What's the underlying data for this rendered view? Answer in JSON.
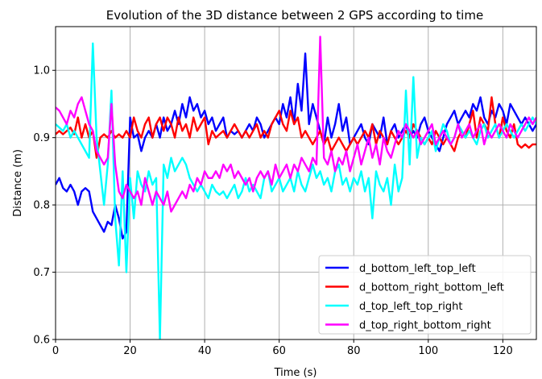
{
  "chart_data": {
    "type": "line",
    "title": "Evolution of the 3D distance between 2 GPS according to time",
    "xlabel": "Time (s)",
    "ylabel": "Distance (m)",
    "xlim": [
      0,
      129
    ],
    "ylim": [
      0.6,
      1.065
    ],
    "xticks": [
      0,
      20,
      40,
      60,
      80,
      100,
      120
    ],
    "yticks": [
      0.6,
      0.7,
      0.8,
      0.9,
      1.0
    ],
    "ytick_labels": [
      "0.6",
      "0.7",
      "0.8",
      "0.9",
      "1.0"
    ],
    "grid": true,
    "legend_position": "lower-right",
    "series": [
      {
        "name": "d_bottom_left_top_left",
        "color": "#0000ff",
        "x": [
          0,
          1,
          2,
          3,
          4,
          5,
          6,
          7,
          8,
          9,
          10,
          11,
          12,
          13,
          14,
          15,
          16,
          17,
          18,
          19,
          20,
          21,
          22,
          23,
          24,
          25,
          26,
          27,
          28,
          29,
          30,
          31,
          32,
          33,
          34,
          35,
          36,
          37,
          38,
          39,
          40,
          41,
          42,
          43,
          44,
          45,
          46,
          47,
          48,
          49,
          50,
          51,
          52,
          53,
          54,
          55,
          56,
          57,
          58,
          59,
          60,
          61,
          62,
          63,
          64,
          65,
          66,
          67,
          68,
          69,
          70,
          71,
          72,
          73,
          74,
          75,
          76,
          77,
          78,
          79,
          80,
          81,
          82,
          83,
          84,
          85,
          86,
          87,
          88,
          89,
          90,
          91,
          92,
          93,
          94,
          95,
          96,
          97,
          98,
          99,
          100,
          101,
          102,
          103,
          104,
          105,
          106,
          107,
          108,
          109,
          110,
          111,
          112,
          113,
          114,
          115,
          116,
          117,
          118,
          119,
          120,
          121,
          122,
          123,
          124,
          125,
          126,
          127,
          128,
          129
        ],
        "y": [
          0.83,
          0.84,
          0.825,
          0.82,
          0.83,
          0.82,
          0.8,
          0.82,
          0.825,
          0.82,
          0.79,
          0.78,
          0.77,
          0.76,
          0.775,
          0.77,
          0.8,
          0.78,
          0.75,
          0.76,
          0.93,
          0.9,
          0.905,
          0.88,
          0.9,
          0.91,
          0.9,
          0.92,
          0.9,
          0.93,
          0.91,
          0.92,
          0.94,
          0.92,
          0.95,
          0.93,
          0.96,
          0.94,
          0.95,
          0.93,
          0.94,
          0.92,
          0.93,
          0.91,
          0.92,
          0.93,
          0.9,
          0.91,
          0.905,
          0.91,
          0.9,
          0.91,
          0.92,
          0.91,
          0.93,
          0.92,
          0.9,
          0.91,
          0.92,
          0.93,
          0.92,
          0.95,
          0.93,
          0.96,
          0.92,
          0.98,
          0.94,
          1.025,
          0.92,
          0.95,
          0.93,
          0.91,
          0.89,
          0.93,
          0.9,
          0.92,
          0.95,
          0.91,
          0.93,
          0.89,
          0.9,
          0.91,
          0.92,
          0.9,
          0.89,
          0.92,
          0.91,
          0.9,
          0.93,
          0.89,
          0.91,
          0.92,
          0.9,
          0.91,
          0.92,
          0.9,
          0.91,
          0.9,
          0.92,
          0.93,
          0.91,
          0.9,
          0.89,
          0.88,
          0.9,
          0.92,
          0.93,
          0.94,
          0.92,
          0.93,
          0.94,
          0.93,
          0.95,
          0.94,
          0.96,
          0.93,
          0.92,
          0.94,
          0.93,
          0.95,
          0.94,
          0.92,
          0.95,
          0.94,
          0.93,
          0.92,
          0.93,
          0.92,
          0.91,
          0.92
        ]
      },
      {
        "name": "d_bottom_right_bottom_left",
        "color": "#ff0000",
        "x": [
          0,
          1,
          2,
          3,
          4,
          5,
          6,
          7,
          8,
          9,
          10,
          11,
          12,
          13,
          14,
          15,
          16,
          17,
          18,
          19,
          20,
          21,
          22,
          23,
          24,
          25,
          26,
          27,
          28,
          29,
          30,
          31,
          32,
          33,
          34,
          35,
          36,
          37,
          38,
          39,
          40,
          41,
          42,
          43,
          44,
          45,
          46,
          47,
          48,
          49,
          50,
          51,
          52,
          53,
          54,
          55,
          56,
          57,
          58,
          59,
          60,
          61,
          62,
          63,
          64,
          65,
          66,
          67,
          68,
          69,
          70,
          71,
          72,
          73,
          74,
          75,
          76,
          77,
          78,
          79,
          80,
          81,
          82,
          83,
          84,
          85,
          86,
          87,
          88,
          89,
          90,
          91,
          92,
          93,
          94,
          95,
          96,
          97,
          98,
          99,
          100,
          101,
          102,
          103,
          104,
          105,
          106,
          107,
          108,
          109,
          110,
          111,
          112,
          113,
          114,
          115,
          116,
          117,
          118,
          119,
          120,
          121,
          122,
          123,
          124,
          125,
          126,
          127,
          128,
          129
        ],
        "y": [
          0.905,
          0.91,
          0.905,
          0.91,
          0.915,
          0.905,
          0.93,
          0.9,
          0.92,
          0.9,
          0.91,
          0.87,
          0.9,
          0.905,
          0.9,
          0.91,
          0.9,
          0.905,
          0.9,
          0.91,
          0.9,
          0.93,
          0.91,
          0.9,
          0.92,
          0.93,
          0.9,
          0.92,
          0.93,
          0.91,
          0.93,
          0.92,
          0.9,
          0.93,
          0.91,
          0.92,
          0.9,
          0.93,
          0.91,
          0.92,
          0.93,
          0.89,
          0.91,
          0.9,
          0.905,
          0.91,
          0.9,
          0.91,
          0.92,
          0.91,
          0.9,
          0.91,
          0.9,
          0.91,
          0.92,
          0.9,
          0.91,
          0.9,
          0.92,
          0.93,
          0.94,
          0.92,
          0.91,
          0.94,
          0.92,
          0.93,
          0.9,
          0.91,
          0.9,
          0.89,
          0.9,
          0.91,
          0.89,
          0.9,
          0.88,
          0.89,
          0.9,
          0.89,
          0.88,
          0.89,
          0.9,
          0.89,
          0.9,
          0.91,
          0.9,
          0.92,
          0.89,
          0.91,
          0.9,
          0.89,
          0.91,
          0.9,
          0.89,
          0.9,
          0.91,
          0.9,
          0.92,
          0.91,
          0.9,
          0.89,
          0.9,
          0.89,
          0.91,
          0.9,
          0.89,
          0.9,
          0.89,
          0.88,
          0.9,
          0.91,
          0.9,
          0.92,
          0.94,
          0.9,
          0.93,
          0.92,
          0.91,
          0.96,
          0.92,
          0.9,
          0.93,
          0.91,
          0.9,
          0.92,
          0.89,
          0.885,
          0.89,
          0.885,
          0.89,
          0.89
        ]
      },
      {
        "name": "d_top_left_top_right",
        "color": "#00ffff",
        "x": [
          0,
          1,
          2,
          3,
          4,
          5,
          6,
          7,
          8,
          9,
          10,
          11,
          12,
          13,
          14,
          15,
          16,
          17,
          18,
          19,
          20,
          21,
          22,
          23,
          24,
          25,
          26,
          27,
          28,
          29,
          30,
          31,
          32,
          33,
          34,
          35,
          36,
          37,
          38,
          39,
          40,
          41,
          42,
          43,
          44,
          45,
          46,
          47,
          48,
          49,
          50,
          51,
          52,
          53,
          54,
          55,
          56,
          57,
          58,
          59,
          60,
          61,
          62,
          63,
          64,
          65,
          66,
          67,
          68,
          69,
          70,
          71,
          72,
          73,
          74,
          75,
          76,
          77,
          78,
          79,
          80,
          81,
          82,
          83,
          84,
          85,
          86,
          87,
          88,
          89,
          90,
          91,
          92,
          93,
          94,
          95,
          96,
          97,
          98,
          99,
          100,
          101,
          102,
          103,
          104,
          105,
          106,
          107,
          108,
          109,
          110,
          111,
          112,
          113,
          114,
          115,
          116,
          117,
          118,
          119,
          120,
          121,
          122,
          123,
          124,
          125,
          126,
          127,
          128,
          129
        ],
        "y": [
          0.92,
          0.915,
          0.91,
          0.92,
          0.9,
          0.91,
          0.9,
          0.89,
          0.88,
          0.87,
          1.04,
          0.9,
          0.85,
          0.8,
          0.86,
          0.97,
          0.78,
          0.71,
          0.85,
          0.7,
          0.84,
          0.78,
          0.85,
          0.83,
          0.82,
          0.85,
          0.83,
          0.84,
          0.6,
          0.86,
          0.84,
          0.87,
          0.85,
          0.86,
          0.87,
          0.86,
          0.84,
          0.83,
          0.82,
          0.83,
          0.82,
          0.81,
          0.83,
          0.82,
          0.815,
          0.82,
          0.81,
          0.82,
          0.83,
          0.81,
          0.82,
          0.84,
          0.82,
          0.83,
          0.82,
          0.81,
          0.84,
          0.85,
          0.82,
          0.83,
          0.84,
          0.82,
          0.83,
          0.84,
          0.82,
          0.85,
          0.83,
          0.82,
          0.84,
          0.86,
          0.84,
          0.85,
          0.83,
          0.84,
          0.82,
          0.85,
          0.86,
          0.83,
          0.84,
          0.82,
          0.84,
          0.83,
          0.85,
          0.82,
          0.84,
          0.78,
          0.85,
          0.83,
          0.82,
          0.84,
          0.8,
          0.86,
          0.82,
          0.84,
          0.97,
          0.86,
          0.99,
          0.87,
          0.9,
          0.89,
          0.9,
          0.91,
          0.88,
          0.9,
          0.92,
          0.91,
          0.89,
          0.9,
          0.92,
          0.91,
          0.9,
          0.91,
          0.9,
          0.89,
          0.91,
          0.92,
          0.9,
          0.91,
          0.92,
          0.9,
          0.91,
          0.92,
          0.91,
          0.9,
          0.91,
          0.92,
          0.91,
          0.92,
          0.93,
          0.92
        ]
      },
      {
        "name": "d_top_right_bottom_right",
        "color": "#ff00ff",
        "x": [
          0,
          1,
          2,
          3,
          4,
          5,
          6,
          7,
          8,
          9,
          10,
          11,
          12,
          13,
          14,
          15,
          16,
          17,
          18,
          19,
          20,
          21,
          22,
          23,
          24,
          25,
          26,
          27,
          28,
          29,
          30,
          31,
          32,
          33,
          34,
          35,
          36,
          37,
          38,
          39,
          40,
          41,
          42,
          43,
          44,
          45,
          46,
          47,
          48,
          49,
          50,
          51,
          52,
          53,
          54,
          55,
          56,
          57,
          58,
          59,
          60,
          61,
          62,
          63,
          64,
          65,
          66,
          67,
          68,
          69,
          70,
          71,
          72,
          73,
          74,
          75,
          76,
          77,
          78,
          79,
          80,
          81,
          82,
          83,
          84,
          85,
          86,
          87,
          88,
          89,
          90,
          91,
          92,
          93,
          94,
          95,
          96,
          97,
          98,
          99,
          100,
          101,
          102,
          103,
          104,
          105,
          106,
          107,
          108,
          109,
          110,
          111,
          112,
          113,
          114,
          115,
          116,
          117,
          118,
          119,
          120,
          121,
          122,
          123,
          124,
          125,
          126,
          127,
          128,
          129
        ],
        "y": [
          0.945,
          0.94,
          0.93,
          0.92,
          0.94,
          0.93,
          0.95,
          0.96,
          0.94,
          0.92,
          0.91,
          0.88,
          0.87,
          0.86,
          0.87,
          0.95,
          0.86,
          0.82,
          0.81,
          0.83,
          0.82,
          0.81,
          0.82,
          0.8,
          0.84,
          0.82,
          0.8,
          0.82,
          0.81,
          0.8,
          0.82,
          0.79,
          0.8,
          0.81,
          0.82,
          0.81,
          0.83,
          0.82,
          0.84,
          0.83,
          0.85,
          0.84,
          0.84,
          0.85,
          0.84,
          0.86,
          0.85,
          0.86,
          0.84,
          0.85,
          0.84,
          0.83,
          0.84,
          0.82,
          0.84,
          0.85,
          0.84,
          0.85,
          0.83,
          0.86,
          0.84,
          0.85,
          0.86,
          0.84,
          0.86,
          0.85,
          0.87,
          0.86,
          0.85,
          0.87,
          0.86,
          1.05,
          0.87,
          0.86,
          0.88,
          0.85,
          0.87,
          0.86,
          0.88,
          0.85,
          0.87,
          0.89,
          0.86,
          0.88,
          0.9,
          0.87,
          0.89,
          0.86,
          0.9,
          0.88,
          0.87,
          0.89,
          0.91,
          0.9,
          0.92,
          0.91,
          0.9,
          0.91,
          0.89,
          0.9,
          0.91,
          0.92,
          0.89,
          0.9,
          0.91,
          0.9,
          0.89,
          0.9,
          0.92,
          0.9,
          0.91,
          0.92,
          0.9,
          0.91,
          0.92,
          0.89,
          0.91,
          0.9,
          0.91,
          0.92,
          0.91,
          0.9,
          0.92,
          0.91,
          0.9,
          0.91,
          0.92,
          0.93,
          0.92,
          0.93
        ]
      }
    ]
  }
}
